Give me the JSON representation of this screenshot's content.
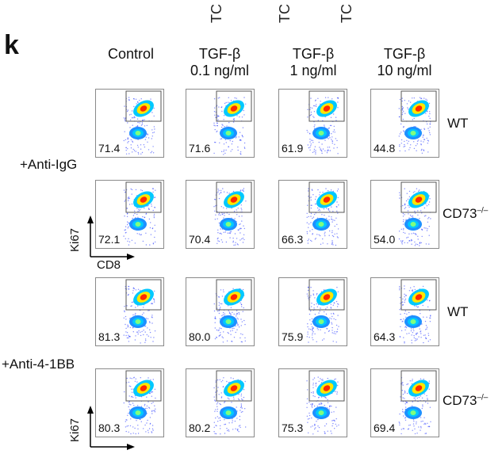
{
  "figure": {
    "top_fragments": [
      "TC",
      "TC",
      "TC"
    ],
    "panel_letter": "k",
    "columns": [
      {
        "line1": "Control",
        "line2": ""
      },
      {
        "line1": "TGF-β",
        "line2": "0.1 ng/ml"
      },
      {
        "line1": "TGF-β",
        "line2": "1 ng/ml"
      },
      {
        "line1": "TGF-β",
        "line2": "10 ng/ml"
      }
    ],
    "groups": [
      {
        "label": "+Anti-IgG"
      },
      {
        "label": "+Anti-4-1BB"
      }
    ],
    "genotypes": [
      {
        "name": "WT",
        "sup": ""
      },
      {
        "name": "CD73",
        "sup": "–/–"
      },
      {
        "name": "WT",
        "sup": ""
      },
      {
        "name": "CD73",
        "sup": "–/–"
      }
    ],
    "axes": {
      "y": "Ki67",
      "x": "CD8"
    },
    "values": [
      [
        "71.4",
        "71.6",
        "61.9",
        "44.8"
      ],
      [
        "72.1",
        "70.4",
        "66.3",
        "54.0"
      ],
      [
        "81.3",
        "80.0",
        "75.9",
        "64.3"
      ],
      [
        "80.3",
        "80.2",
        "75.3",
        "69.4"
      ]
    ],
    "colors": {
      "density_high": "#ff2a00",
      "density_mid": "#ffe600",
      "density_low": "#00c8ff",
      "scatter": "#2a3cff"
    }
  }
}
